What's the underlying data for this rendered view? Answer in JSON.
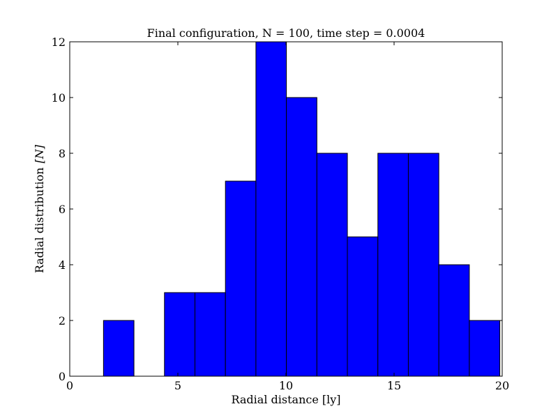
{
  "chart_data": {
    "type": "bar",
    "histogram": true,
    "title": "Final configuration, N = 100, time step = 0.0004",
    "xlabel": "Radial distance [ly]",
    "ylabel": "Radial distribution",
    "ylabel_unit": "[N]",
    "xlim": [
      0,
      20
    ],
    "ylim": [
      0,
      12
    ],
    "xticks": [
      0,
      5,
      10,
      15,
      20
    ],
    "yticks": [
      0,
      2,
      4,
      6,
      8,
      10,
      12
    ],
    "bin_edges": [
      0.15,
      1.56,
      2.97,
      4.38,
      5.79,
      7.2,
      8.61,
      10.02,
      11.43,
      12.84,
      14.25,
      15.66,
      17.07,
      18.48,
      19.89
    ],
    "values": [
      0,
      2,
      0,
      3,
      3,
      7,
      12,
      10,
      8,
      5,
      8,
      8,
      4,
      2
    ],
    "grid": false,
    "bar_color": "#0000ff",
    "edge_color": "#000000"
  }
}
